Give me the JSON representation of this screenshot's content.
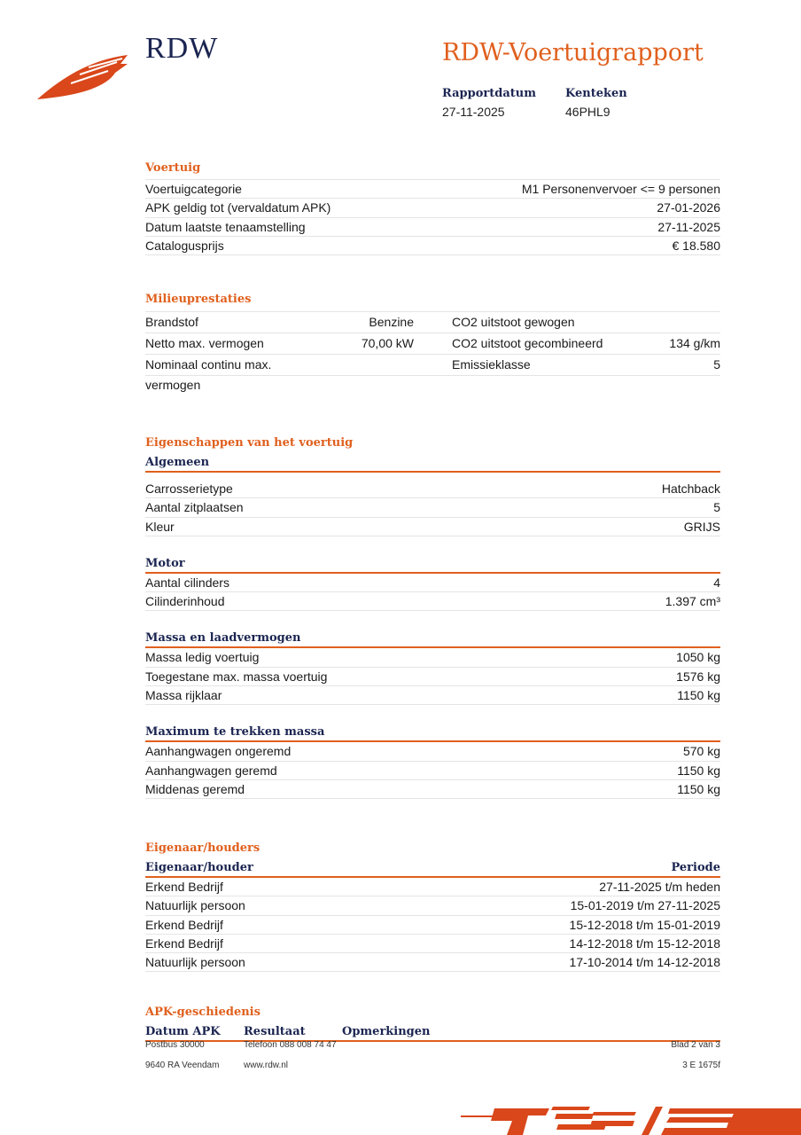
{
  "header": {
    "brand": "RDW",
    "title": "RDW-Voertuigrapport",
    "report_date_label": "Rapportdatum",
    "report_date": "27-11-2025",
    "plate_label": "Kenteken",
    "plate": "46PHL9"
  },
  "voertuig": {
    "title": "Voertuig",
    "rows": [
      {
        "label": "Voertuigcategorie",
        "value": "M1 Personenvervoer <= 9 personen"
      },
      {
        "label": "APK geldig tot (vervaldatum APK)",
        "value": "27-01-2026"
      },
      {
        "label": "Datum laatste tenaamstelling",
        "value": "27-11-2025"
      },
      {
        "label": "Catalogusprijs",
        "value": "€ 18.580"
      }
    ]
  },
  "milieu": {
    "title": "Milieuprestaties",
    "rows": [
      {
        "label": "Brandstof",
        "value": "Benzine",
        "label2": "CO2 uitstoot gewogen",
        "value2": ""
      },
      {
        "label": "Netto max. vermogen",
        "value": "70,00 kW",
        "label2": "CO2 uitstoot gecombineerd",
        "value2": "134 g/km"
      },
      {
        "label": "Nominaal continu max. vermogen",
        "value": "",
        "label2": "Emissieklasse",
        "value2": "5"
      }
    ]
  },
  "eigenschappen": {
    "title": "Eigenschappen van het voertuig",
    "groups": [
      {
        "title": "Algemeen",
        "rows": [
          {
            "label": "Carrosserietype",
            "value": "Hatchback"
          },
          {
            "label": "Aantal zitplaatsen",
            "value": "5"
          },
          {
            "label": "Kleur",
            "value": "GRIJS"
          }
        ]
      },
      {
        "title": "Motor",
        "rows": [
          {
            "label": "Aantal cilinders",
            "value": "4"
          },
          {
            "label": "Cilinderinhoud",
            "value": "1.397 cm³"
          }
        ]
      },
      {
        "title": "Massa en laadvermogen",
        "rows": [
          {
            "label": "Massa ledig voertuig",
            "value": "1050 kg"
          },
          {
            "label": "Toegestane max. massa voertuig",
            "value": "1576 kg"
          },
          {
            "label": "Massa rijklaar",
            "value": "1150 kg"
          }
        ]
      },
      {
        "title": "Maximum te trekken massa",
        "rows": [
          {
            "label": "Aanhangwagen ongeremd",
            "value": "570 kg"
          },
          {
            "label": "Aanhangwagen geremd",
            "value": "1150 kg"
          },
          {
            "label": "Middenas geremd",
            "value": "1150 kg"
          }
        ]
      }
    ]
  },
  "eigenaar": {
    "title": "Eigenaar/houders",
    "col1": "Eigenaar/houder",
    "col2": "Periode",
    "rows": [
      {
        "label": "Erkend Bedrijf",
        "value": "27-11-2025 t/m heden"
      },
      {
        "label": "Natuurlijk persoon",
        "value": "15-01-2019 t/m 27-11-2025"
      },
      {
        "label": "Erkend Bedrijf",
        "value": "15-12-2018 t/m 15-01-2019"
      },
      {
        "label": "Erkend Bedrijf",
        "value": "14-12-2018 t/m 15-12-2018"
      },
      {
        "label": "Natuurlijk persoon",
        "value": "17-10-2014 t/m 14-12-2018"
      }
    ]
  },
  "apk": {
    "title": "APK-geschiedenis",
    "col1": "Datum APK",
    "col2": "Resultaat",
    "col3": "Opmerkingen"
  },
  "footer": {
    "address1": "Postbus 30000",
    "address2": "9640 RA Veendam",
    "phone": "Telefoon 088 008 74 47",
    "web": "www.rdw.nl",
    "page": "Blad 2 van 3",
    "code": "3 E 1675f"
  },
  "colors": {
    "orange": "#e0601e",
    "navy": "#1b2551"
  }
}
